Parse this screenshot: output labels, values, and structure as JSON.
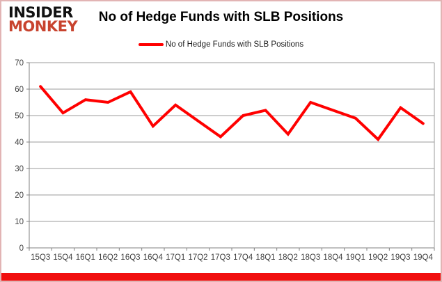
{
  "header": {
    "logo_line1": "INSIDER",
    "logo_line2": "MONKEY",
    "title": "No of Hedge Funds with SLB Positions"
  },
  "legend": {
    "label": "No of Hedge Funds with SLB Positions"
  },
  "chart_data": {
    "type": "line",
    "title": "No of Hedge Funds with SLB Positions",
    "categories": [
      "15Q3",
      "15Q4",
      "16Q1",
      "16Q2",
      "16Q3",
      "16Q4",
      "17Q1",
      "17Q2",
      "17Q3",
      "17Q4",
      "18Q1",
      "18Q2",
      "18Q3",
      "18Q4",
      "19Q1",
      "19Q2",
      "19Q3",
      "19Q4"
    ],
    "series": [
      {
        "name": "No of Hedge Funds with SLB Positions",
        "values": [
          61,
          51,
          56,
          55,
          59,
          46,
          54,
          48,
          42,
          50,
          52,
          43,
          55,
          52,
          49,
          41,
          53,
          47
        ]
      }
    ],
    "xlabel": "",
    "ylabel": "",
    "ylim": [
      0,
      70
    ],
    "yticks": [
      0,
      10,
      20,
      30,
      40,
      50,
      60,
      70
    ],
    "grid": "horizontal",
    "legend_position": "top-center"
  },
  "colors": {
    "line": "#ff0000",
    "grid": "#9b9b9b",
    "axis": "#808080",
    "tick_label": "#3f3f3f",
    "logo_black": "#111111",
    "logo_red": "#c8432e",
    "bottom_bar": "#f10f0f",
    "frame_border": "#e2b4b4"
  }
}
